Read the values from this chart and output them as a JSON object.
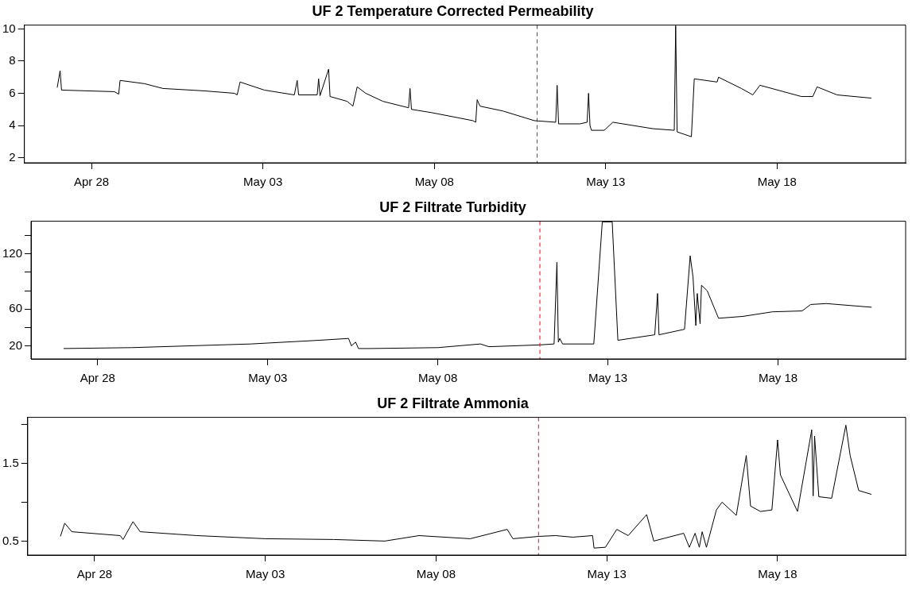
{
  "chart_data": [
    {
      "type": "line",
      "title": "UF 2 Temperature Corrected Permeability",
      "color": "#000000",
      "grid": false,
      "legend": false,
      "x": [
        "--04-27T00:00",
        "--04-27T02:00",
        "--04-27T03:00",
        "--04-28T16:00",
        "--04-28T19:00",
        "--04-28T20:00",
        "--04-29T13:00",
        "--04-30T02:00",
        "--05-01T07:00",
        "--05-02T04:00",
        "--05-02T06:00",
        "--05-02T08:00",
        "--05-03T01:00",
        "--05-03T22:00",
        "--05-04T00:00",
        "--05-04T01:00",
        "--05-04T14:00",
        "--05-04T15:00",
        "--05-04T16:00",
        "--05-04T22:00",
        "--05-04T23:00",
        "--05-05T11:00",
        "--05-05T15:00",
        "--05-05T18:00",
        "--05-06T00:00",
        "--05-06T12:00",
        "--05-07T06:00",
        "--05-07T07:00",
        "--05-07T08:00",
        "--05-07T22:00",
        "--05-09T03:00",
        "--05-09T05:00",
        "--05-09T06:00",
        "--05-09T08:00",
        "--05-10T00:00",
        "--05-10T22:00",
        "--05-11T13:00",
        "--05-11T14:00",
        "--05-11T15:00",
        "--05-12T06:00",
        "--05-12T11:00",
        "--05-12T12:00",
        "--05-12T13:00",
        "--05-12T14:00",
        "--05-12T23:00",
        "--05-13T05:00",
        "--05-14T09:00",
        "--05-15T00:00",
        "--05-15T01:00",
        "--05-15T02:00",
        "--05-15T12:00",
        "--05-15T14:00",
        "--05-16T06:00",
        "--05-16T07:00",
        "--05-16T23:00",
        "--05-17T07:00",
        "--05-17T12:00",
        "--05-18T17:00",
        "--05-19T01:00",
        "--05-19T04:00",
        "--05-19T18:00",
        "--05-20T18:00"
      ],
      "values": [
        6.36,
        7.4,
        6.2,
        6.1,
        5.95,
        6.8,
        6.6,
        6.3,
        6.15,
        6.0,
        5.9,
        6.7,
        6.2,
        5.9,
        6.8,
        5.9,
        5.9,
        6.9,
        5.85,
        7.5,
        5.8,
        5.5,
        5.2,
        6.4,
        6.0,
        5.5,
        5.1,
        6.3,
        5.0,
        4.8,
        4.3,
        4.2,
        5.6,
        5.2,
        4.9,
        4.3,
        4.2,
        6.5,
        4.1,
        4.1,
        4.2,
        6.0,
        4.0,
        3.7,
        3.7,
        4.2,
        3.8,
        3.7,
        10.2,
        3.6,
        3.3,
        6.9,
        6.7,
        7.0,
        6.3,
        5.9,
        6.5,
        5.8,
        5.8,
        6.4,
        5.9,
        5.7
      ],
      "xlim": [
        "--04-26T01:00",
        "--05-21T18:00"
      ],
      "xticks": [
        {
          "value": "--04-28",
          "label": "Apr 28"
        },
        {
          "value": "--05-03",
          "label": "May 03"
        },
        {
          "value": "--05-08",
          "label": "May 08"
        },
        {
          "value": "--05-13",
          "label": "May 13"
        },
        {
          "value": "--05-18",
          "label": "May 18"
        }
      ],
      "ylim": [
        1.68,
        10.24
      ],
      "yticks": [
        2,
        4,
        6,
        8,
        10
      ],
      "ref_lines": [
        {
          "axis": "x",
          "value": "--05-11",
          "color": "#ff0000",
          "line_style": "dashed"
        }
      ]
    },
    {
      "type": "line",
      "title": "UF 2 Filtrate Turbidity",
      "color": "#000000",
      "grid": false,
      "legend": false,
      "x": [
        "--04-27T00:00",
        "--04-29T00:00",
        "--05-02T12:00",
        "--05-04T12:00",
        "--05-05T09:00",
        "--05-05T11:00",
        "--05-05T14:00",
        "--05-05T16:00",
        "--05-06T00:00",
        "--05-08T00:00",
        "--05-09T06:00",
        "--05-09T12:00",
        "--05-11T00:00",
        "--05-11T10:00",
        "--05-11T12:00",
        "--05-11T13:00",
        "--05-11T14:00",
        "--05-11T16:00",
        "--05-12T14:00",
        "--05-12T20:00",
        "--05-13T03:00",
        "--05-13T07:00",
        "--05-14T09:00",
        "--05-14T11:00",
        "--05-14T12:00",
        "--05-15T06:00",
        "--05-15T10:00",
        "--05-15T12:00",
        "--05-15T14:00",
        "--05-15T15:00",
        "--05-15T17:00",
        "--05-15T18:00",
        "--05-15T22:00",
        "--05-16T06:00",
        "--05-16T23:00",
        "--05-17T20:00",
        "--05-18T17:00",
        "--05-18T23:00",
        "--05-19T10:00",
        "--05-20T18:00"
      ],
      "values": [
        17,
        18,
        22,
        26,
        28,
        20,
        24,
        17,
        17,
        18,
        22,
        19,
        21,
        22,
        111,
        24,
        28,
        22,
        22,
        155,
        155,
        26,
        32,
        77,
        32,
        38,
        118,
        95,
        42,
        77,
        44,
        86,
        80,
        50,
        52,
        57,
        58,
        65,
        66,
        62
      ],
      "xlim": [
        "--04-26T01:00",
        "--05-21T18:00"
      ],
      "xticks": [
        {
          "value": "--04-28",
          "label": "Apr 28"
        },
        {
          "value": "--05-03",
          "label": "May 03"
        },
        {
          "value": "--05-08",
          "label": "May 08"
        },
        {
          "value": "--05-13",
          "label": "May 13"
        },
        {
          "value": "--05-18",
          "label": "May 18"
        }
      ],
      "ylim": [
        5.7,
        155.7
      ],
      "yticks": [
        20,
        {
          "value": 40,
          "label": null
        },
        60,
        {
          "value": 80,
          "label": null
        },
        {
          "value": 100,
          "label": null
        },
        120,
        {
          "value": 140,
          "label": null
        }
      ],
      "ref_lines": [
        {
          "axis": "x",
          "value": "--05-11",
          "color": "#ff0000",
          "line_style": "dashed"
        }
      ]
    },
    {
      "type": "line",
      "title": "UF 2 Filtrate Ammonia",
      "color": "#000000",
      "grid": false,
      "legend": false,
      "x": [
        "--04-27T00:00",
        "--04-27T03:00",
        "--04-27T08:00",
        "--04-28T18:00",
        "--04-28T20:00",
        "--04-29T03:00",
        "--04-29T08:00",
        "--05-01T00:00",
        "--05-03T00:00",
        "--05-05T00:00",
        "--05-06T12:00",
        "--05-07T12:00",
        "--05-09T00:00",
        "--05-10T02:00",
        "--05-10T06:00",
        "--05-11T00:00",
        "--05-11T12:00",
        "--05-12T00:00",
        "--05-12T14:00",
        "--05-12T15:00",
        "--05-12T23:00",
        "--05-13T07:00",
        "--05-13T15:00",
        "--05-14T04:00",
        "--05-14T09:00",
        "--05-15T06:00",
        "--05-15T10:00",
        "--05-15T14:00",
        "--05-15T17:00",
        "--05-15T19:00",
        "--05-15T22:00",
        "--05-16T05:00",
        "--05-16T09:00",
        "--05-16T19:00",
        "--05-17T02:00",
        "--05-17T05:00",
        "--05-17T12:00",
        "--05-17T20:00",
        "--05-18T00:00",
        "--05-18T02:00",
        "--05-18T14:00",
        "--05-19T00:00",
        "--05-19T01:00",
        "--05-19T02:00",
        "--05-19T05:00",
        "--05-19T14:00",
        "--05-20T00:00",
        "--05-20T03:00",
        "--05-20T09:00",
        "--05-20T18:00"
      ],
      "values": [
        0.56,
        0.73,
        0.62,
        0.57,
        0.52,
        0.75,
        0.62,
        0.57,
        0.53,
        0.52,
        0.5,
        0.57,
        0.53,
        0.65,
        0.53,
        0.56,
        0.57,
        0.55,
        0.57,
        0.41,
        0.42,
        0.65,
        0.57,
        0.84,
        0.5,
        0.6,
        0.42,
        0.6,
        0.42,
        0.62,
        0.42,
        0.9,
        1.0,
        0.83,
        1.6,
        0.95,
        0.88,
        0.9,
        1.8,
        1.35,
        0.88,
        1.93,
        1.08,
        1.85,
        1.07,
        1.05,
        1.99,
        1.6,
        1.15,
        1.1
      ],
      "xlim": [
        "--04-26T01:00",
        "--05-21T18:00"
      ],
      "xticks": [
        {
          "value": "--04-28",
          "label": "Apr 28"
        },
        {
          "value": "--05-03",
          "label": "May 03"
        },
        {
          "value": "--05-08",
          "label": "May 08"
        },
        {
          "value": "--05-13",
          "label": "May 13"
        },
        {
          "value": "--05-18",
          "label": "May 18"
        }
      ],
      "ylim": [
        0.32,
        2.09
      ],
      "yticks": [
        0.5,
        {
          "value": 1.0,
          "label": null
        },
        1.5,
        {
          "value": 2.0,
          "label": null
        }
      ],
      "ref_lines": [
        {
          "axis": "x",
          "value": "--05-11",
          "color": "#ff0000",
          "line_style": "dashed"
        }
      ]
    }
  ]
}
